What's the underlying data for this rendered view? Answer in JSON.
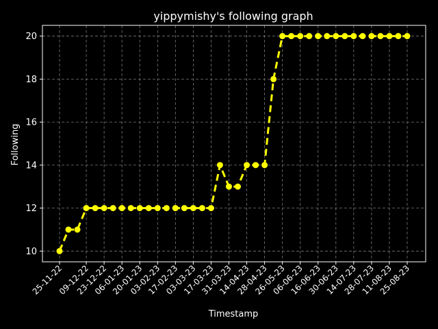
{
  "chart_data": {
    "type": "line",
    "title": "yippymishy's following graph",
    "xlabel": "Timestamp",
    "ylabel": "Following",
    "ylim": [
      9.5,
      20.5
    ],
    "yticks": [
      10,
      12,
      14,
      16,
      18,
      20
    ],
    "grid": true,
    "x_tick_labels": [
      "25-11-22",
      "09-12-22",
      "23-12-22",
      "06-01-23",
      "20-01-23",
      "03-02-23",
      "17-02-23",
      "03-03-23",
      "17-03-23",
      "31-03-23",
      "14-04-23",
      "28-04-23",
      "26-05-23",
      "06-06-23",
      "16-06-23",
      "30-06-23",
      "14-07-23",
      "28-07-23",
      "11-08-23",
      "25-08-23"
    ],
    "x_tick_point_index": [
      0,
      3,
      5,
      7,
      9,
      11,
      13,
      15,
      17,
      19,
      21,
      23,
      25,
      27,
      29,
      31,
      33,
      35,
      37,
      39
    ],
    "series": [
      {
        "color": "#ffff00",
        "values": [
          10,
          11,
          11,
          12,
          12,
          12,
          12,
          12,
          12,
          12,
          12,
          12,
          12,
          12,
          12,
          12,
          12,
          12,
          14,
          13,
          13,
          14,
          14,
          14,
          18,
          20,
          20,
          20,
          20,
          20,
          20,
          20,
          20,
          20,
          20,
          20,
          20,
          20,
          20,
          20
        ]
      }
    ]
  }
}
